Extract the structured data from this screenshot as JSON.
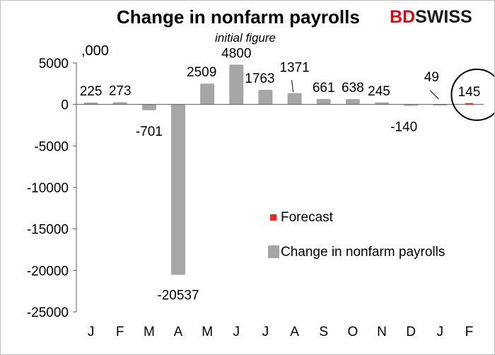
{
  "brand": {
    "bd": "BD",
    "swiss": "SWISS",
    "bd_color": "#e30613",
    "swiss_color": "#1a1a1a"
  },
  "chart_data": {
    "type": "bar",
    "title": "Change in nonfarm payrolls",
    "unit_label": ",000",
    "annotation": "initial figure",
    "categories": [
      "J",
      "F",
      "M",
      "A",
      "M",
      "J",
      "J",
      "A",
      "S",
      "O",
      "N",
      "D",
      "J",
      "F"
    ],
    "series": [
      {
        "name": "Change in nonfarm payrolls",
        "color": "#a6a6a6",
        "values": [
          225,
          273,
          -701,
          -20537,
          2509,
          4800,
          1763,
          1371,
          661,
          638,
          245,
          -140,
          49,
          null
        ]
      },
      {
        "name": "Forecast",
        "color": "#ff2020",
        "values": [
          null,
          null,
          null,
          null,
          null,
          null,
          null,
          null,
          null,
          null,
          null,
          null,
          null,
          145
        ]
      }
    ],
    "data_labels": [
      "225",
      "273",
      "-701",
      "-20537",
      "2509",
      "4800",
      "1763",
      "1371",
      "661",
      "638",
      "245",
      "-140",
      "49",
      "145"
    ],
    "ylim": [
      -25000,
      5000
    ],
    "yticks": [
      5000,
      0,
      -5000,
      -10000,
      -15000,
      -20000,
      -25000
    ],
    "ytick_labels": [
      "5000",
      "0",
      "-5000",
      "-10000",
      "-15000",
      "-20000",
      "-25000"
    ],
    "grid": false,
    "legend_position": "lower-right",
    "legend": [
      "Forecast",
      "Change in nonfarm payrolls"
    ],
    "highlight": "circle around last category (forecast)"
  }
}
